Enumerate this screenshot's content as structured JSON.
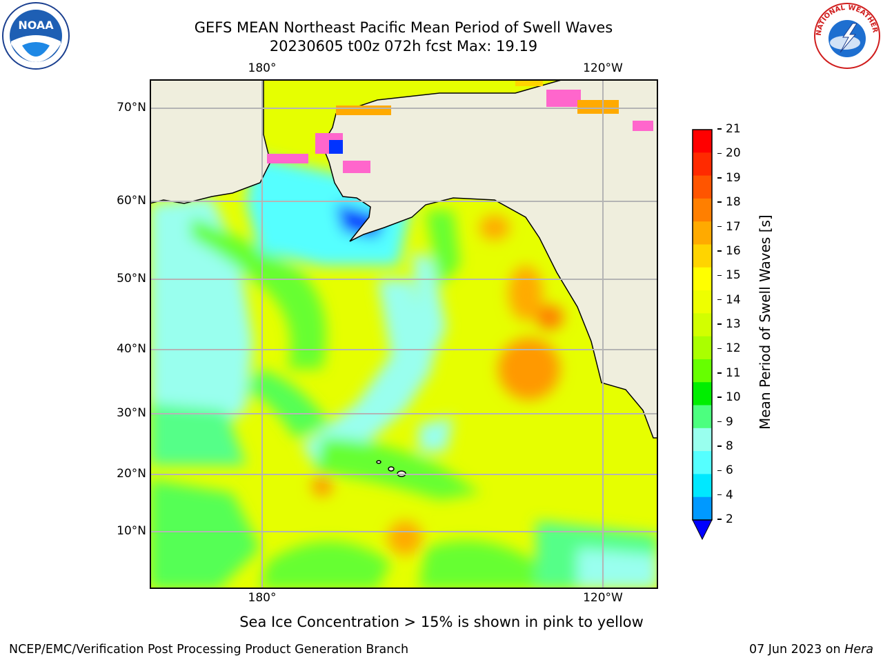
{
  "header": {
    "title_line1": "GEFS MEAN Northeast Pacific Mean Period of Swell Waves",
    "title_line2": "20230605 t00z 072h fcst   Max: 19.19"
  },
  "logos": {
    "left": "NOAA",
    "right_text": "NATIONAL WEATHER SERVICE"
  },
  "map": {
    "lon_labels_top": [
      "180°",
      "120°W"
    ],
    "lon_labels_bottom": [
      "180°",
      "120°W"
    ],
    "lat_labels": [
      "70°N",
      "60°N",
      "50°N",
      "40°N",
      "30°N",
      "20°N",
      "10°N"
    ],
    "land_color": "#efeedd",
    "grid_color": "#b4b4b4"
  },
  "colorbar": {
    "label": "Mean Period of Swell Waves [s]",
    "ticks": [
      "21",
      "20",
      "19",
      "18",
      "17",
      "16",
      "15",
      "14",
      "13",
      "12",
      "11",
      "10",
      "9",
      "8",
      "6",
      "4",
      "2"
    ],
    "colors_top_to_bottom": [
      "#ff0000",
      "#ff2a00",
      "#ff5500",
      "#ff7f00",
      "#ffaa00",
      "#ffd400",
      "#ffff00",
      "#eeff00",
      "#d2ff00",
      "#aaff00",
      "#66ff00",
      "#00ee00",
      "#4cff7f",
      "#99ffee",
      "#55ffff",
      "#00e8ff",
      "#0099ff",
      "#0033ff"
    ],
    "under_color": "#0000ff"
  },
  "footer": {
    "note": "Sea Ice Concentration > 15% is shown in pink to yellow",
    "left": "NCEP/EMC/Verification Post Processing Product Generation Branch",
    "right": "07 Jun 2023 on Hera"
  }
}
